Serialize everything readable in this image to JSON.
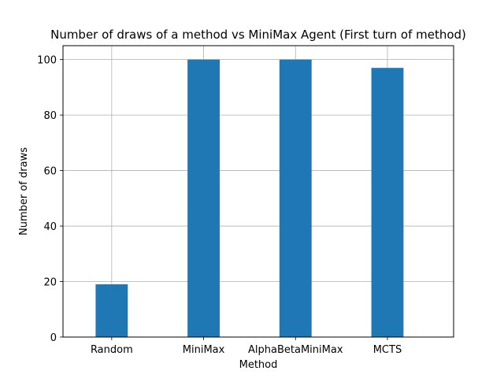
{
  "chart_data": {
    "type": "bar",
    "title": "Number of draws of a method vs MiniMax Agent (First turn of method)",
    "xlabel": "Method",
    "ylabel": "Number of draws",
    "categories": [
      "Random",
      "MiniMax",
      "AlphaBetaMiniMax",
      "MCTS"
    ],
    "values": [
      19,
      100,
      100,
      97
    ],
    "ylim": [
      0,
      105
    ],
    "yticks": [
      0,
      20,
      40,
      60,
      80,
      100
    ],
    "grid": true,
    "legend": "none",
    "bar_color": "#1f77b4"
  }
}
